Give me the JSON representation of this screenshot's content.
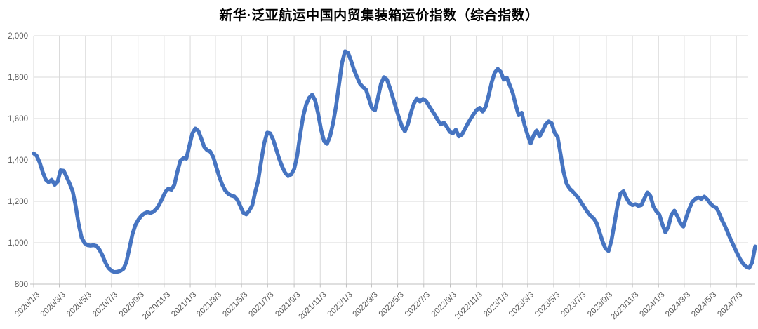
{
  "chart_data": {
    "type": "line",
    "title": "新华·泛亚航运中国内贸集装箱运价指数（综合指数）",
    "xlabel": "",
    "ylabel": "",
    "ylim": [
      800,
      2000
    ],
    "grid": true,
    "legend": "none",
    "x_start": "2020/1/3",
    "x_interval": "weekly",
    "x_tick_labels": [
      "2020/1/3",
      "2020/3/3",
      "2020/5/3",
      "2020/7/3",
      "2020/9/3",
      "2020/11/3",
      "2021/1/3",
      "2021/3/3",
      "2021/5/3",
      "2021/7/3",
      "2021/9/3",
      "2021/11/3",
      "2022/1/3",
      "2022/3/3",
      "2022/5/3",
      "2022/7/3",
      "2022/9/3",
      "2022/11/3",
      "2023/1/3",
      "2023/3/3",
      "2023/5/3",
      "2023/7/3",
      "2023/9/3",
      "2023/11/3",
      "2024/1/3",
      "2024/3/3",
      "2024/5/3",
      "2024/7/3"
    ],
    "x_tick_weeks": [
      0,
      8.57,
      17.29,
      26,
      34.86,
      43.57,
      52.29,
      60.71,
      69.43,
      78.14,
      87,
      95.71,
      104.43,
      112.86,
      121.57,
      130.29,
      139.14,
      147.86,
      156.57,
      165,
      173.71,
      182.43,
      191.29,
      200,
      208.71,
      217.29,
      226,
      234.71
    ],
    "y_ticks": [
      800,
      1000,
      1200,
      1400,
      1600,
      1800,
      2000
    ],
    "y_tick_labels": [
      "800",
      "1,000",
      "1,200",
      "1,400",
      "1,600",
      "1,800",
      "2,000"
    ],
    "series": [
      {
        "name": "综合指数",
        "color": "#4674C1",
        "values": [
          1432,
          1420,
          1388,
          1342,
          1305,
          1292,
          1304,
          1280,
          1295,
          1350,
          1348,
          1318,
          1286,
          1250,
          1180,
          1090,
          1025,
          998,
          988,
          986,
          988,
          984,
          966,
          938,
          902,
          878,
          864,
          858,
          860,
          864,
          874,
          908,
          975,
          1042,
          1086,
          1112,
          1130,
          1142,
          1148,
          1143,
          1150,
          1164,
          1186,
          1216,
          1246,
          1262,
          1256,
          1280,
          1342,
          1396,
          1408,
          1406,
          1468,
          1528,
          1552,
          1540,
          1502,
          1462,
          1446,
          1440,
          1414,
          1365,
          1318,
          1280,
          1252,
          1236,
          1228,
          1224,
          1208,
          1178,
          1145,
          1137,
          1155,
          1180,
          1246,
          1300,
          1395,
          1480,
          1532,
          1528,
          1498,
          1452,
          1405,
          1368,
          1338,
          1322,
          1330,
          1355,
          1420,
          1520,
          1610,
          1668,
          1700,
          1715,
          1688,
          1625,
          1545,
          1490,
          1478,
          1515,
          1578,
          1660,
          1765,
          1870,
          1925,
          1918,
          1880,
          1835,
          1800,
          1768,
          1752,
          1740,
          1695,
          1650,
          1640,
          1700,
          1768,
          1800,
          1788,
          1748,
          1700,
          1652,
          1604,
          1562,
          1538,
          1572,
          1628,
          1672,
          1697,
          1682,
          1695,
          1686,
          1662,
          1640,
          1618,
          1592,
          1572,
          1580,
          1560,
          1536,
          1528,
          1546,
          1514,
          1522,
          1548,
          1576,
          1600,
          1622,
          1642,
          1652,
          1634,
          1658,
          1714,
          1776,
          1822,
          1840,
          1826,
          1788,
          1798,
          1762,
          1724,
          1666,
          1616,
          1628,
          1566,
          1520,
          1480,
          1518,
          1542,
          1514,
          1540,
          1572,
          1586,
          1578,
          1532,
          1512,
          1428,
          1342,
          1285,
          1262,
          1248,
          1232,
          1216,
          1192,
          1170,
          1148,
          1130,
          1118,
          1096,
          1052,
          1006,
          972,
          960,
          1012,
          1092,
          1180,
          1238,
          1249,
          1216,
          1192,
          1182,
          1186,
          1178,
          1182,
          1215,
          1243,
          1226,
          1175,
          1152,
          1135,
          1088,
          1050,
          1078,
          1135,
          1155,
          1128,
          1095,
          1078,
          1124,
          1165,
          1198,
          1212,
          1219,
          1212,
          1223,
          1209,
          1190,
          1176,
          1170,
          1141,
          1106,
          1078,
          1043,
          1010,
          980,
          948,
          920,
          898,
          884,
          878,
          905,
          982
        ]
      }
    ]
  },
  "style": {
    "gridline_color": "#D9D9D9",
    "axis_line_color": "#BFBFBF",
    "tick_label_color": "#595959",
    "title_color": "#000000",
    "background_color": "#FFFFFF",
    "line_width": 5.5
  }
}
